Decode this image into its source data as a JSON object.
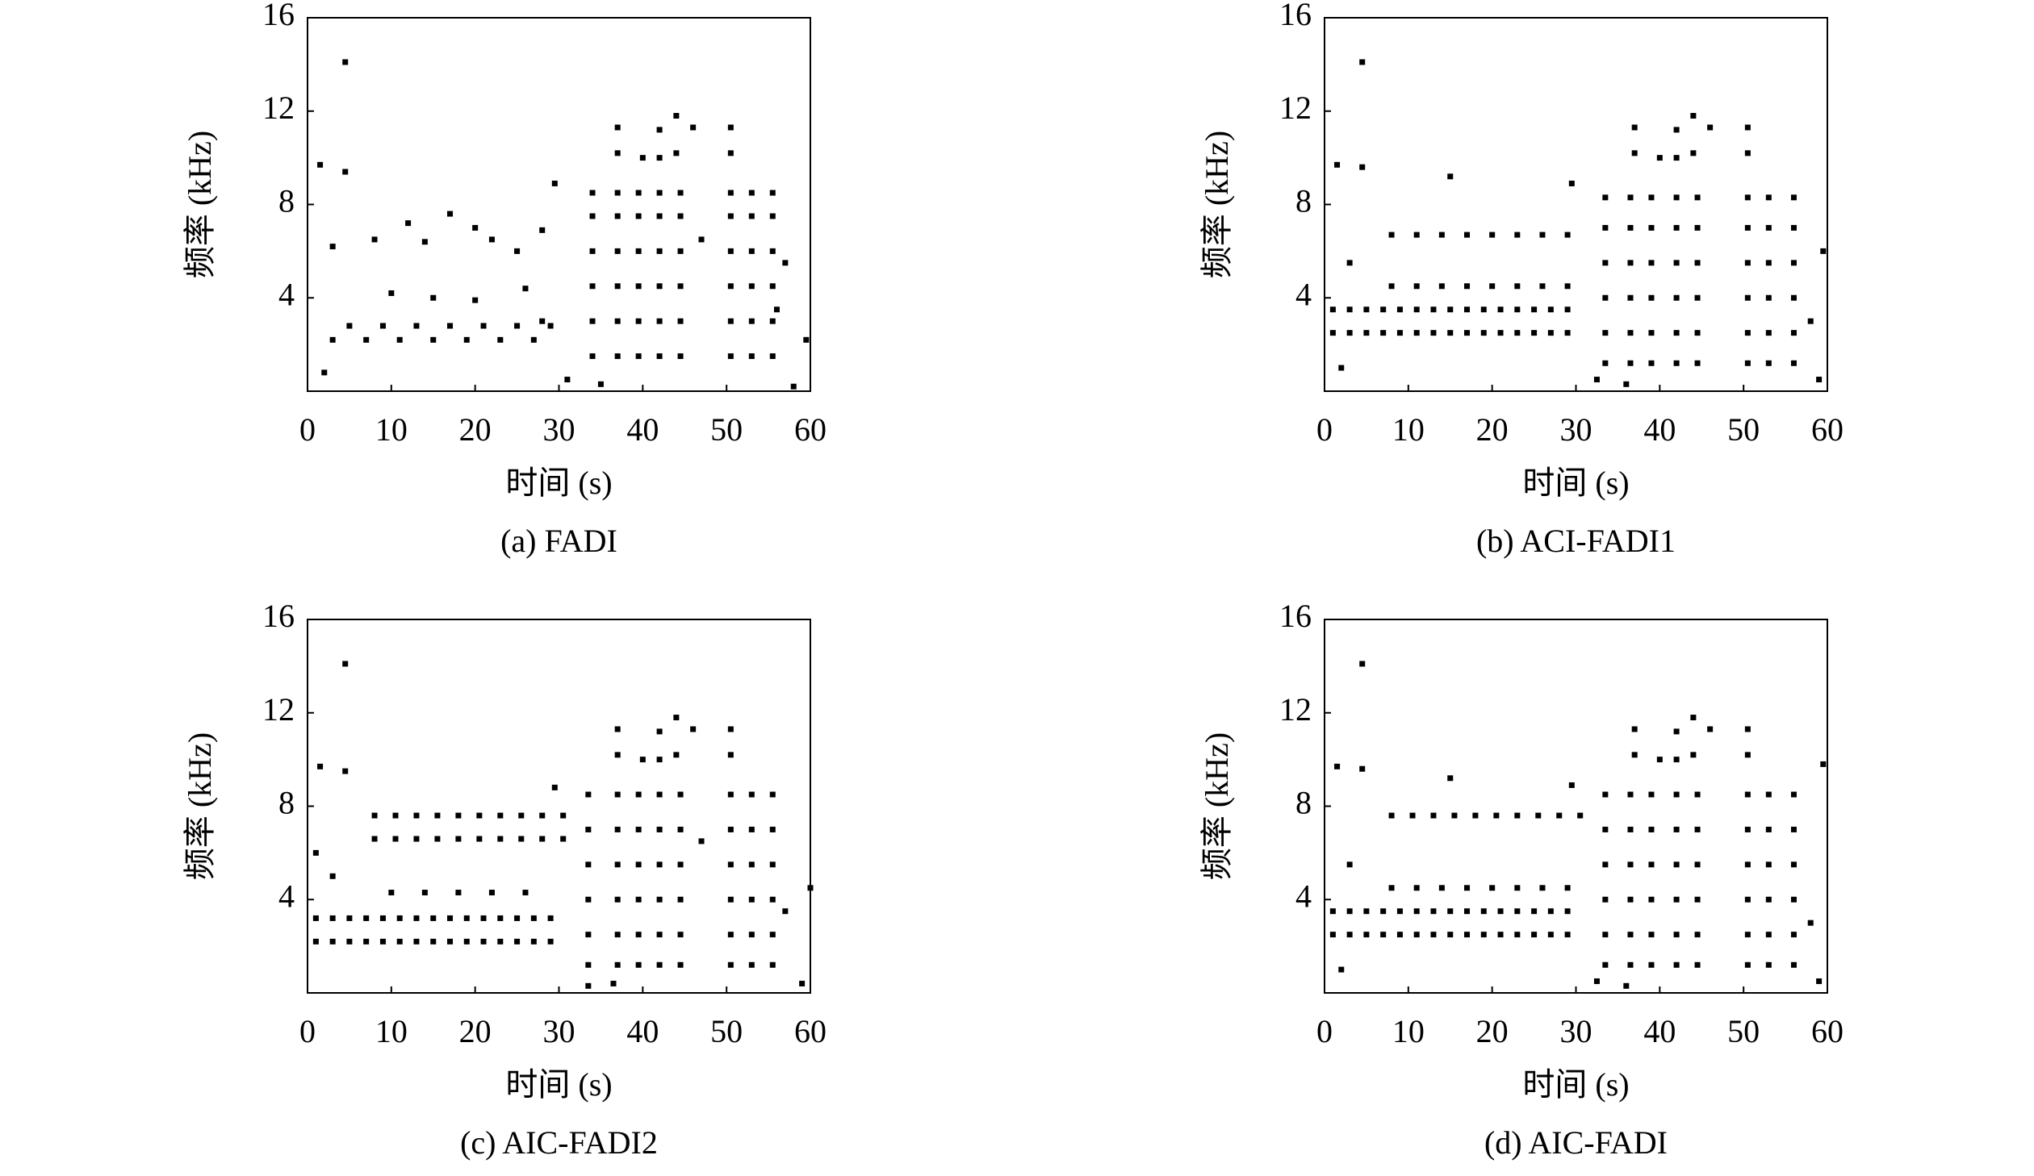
{
  "chart_data": [
    {
      "type": "scatter",
      "x_label": "时间 (s)",
      "y_label": "频率 (kHz)",
      "caption": "(a) FADI",
      "color": "#000000",
      "xlim": [
        0,
        60
      ],
      "ylim": [
        0,
        16
      ],
      "xticks": [
        0,
        10,
        20,
        30,
        40,
        50,
        60
      ],
      "yticks": [
        4,
        8,
        12,
        16
      ],
      "x": [
        34,
        34,
        34,
        34,
        34,
        34,
        37,
        37,
        37,
        37,
        37,
        37,
        39.5,
        39.5,
        39.5,
        39.5,
        39.5,
        39.5,
        42,
        42,
        42,
        42,
        42,
        42,
        44.5,
        44.5,
        44.5,
        44.5,
        44.5,
        44.5,
        50.5,
        50.5,
        50.5,
        50.5,
        50.5,
        50.5,
        53,
        53,
        53,
        53,
        53,
        53,
        55.5,
        55.5,
        55.5,
        55.5,
        55.5,
        55.5,
        37,
        37,
        40,
        42,
        42,
        44,
        44,
        46,
        50.5,
        50.5,
        3,
        5,
        7,
        9,
        11,
        13,
        15,
        17,
        19,
        21,
        23,
        25,
        27,
        29,
        4.5,
        1.5,
        4.5,
        3,
        8,
        12,
        14,
        17,
        20,
        22,
        25,
        28,
        29.5,
        10,
        15,
        20,
        26,
        28,
        2,
        31,
        58,
        56,
        59.5,
        57,
        47,
        35
      ],
      "y": [
        1.5,
        3,
        4.5,
        6,
        7.5,
        8.5,
        1.5,
        3,
        4.5,
        6,
        7.5,
        8.5,
        1.5,
        3,
        4.5,
        6,
        7.5,
        8.5,
        1.5,
        3,
        4.5,
        6,
        7.5,
        8.5,
        1.5,
        3,
        4.5,
        6,
        7.5,
        8.5,
        1.5,
        3,
        4.5,
        6,
        7.5,
        8.5,
        1.5,
        3,
        4.5,
        6,
        7.5,
        8.5,
        1.5,
        3,
        4.5,
        6,
        7.5,
        8.5,
        11.3,
        10.2,
        10,
        11.2,
        10,
        11.8,
        10.2,
        11.3,
        11.3,
        10.2,
        2.2,
        2.8,
        2.2,
        2.8,
        2.2,
        2.8,
        2.2,
        2.8,
        2.2,
        2.8,
        2.2,
        2.8,
        2.2,
        2.8,
        14.1,
        9.7,
        9.4,
        6.2,
        6.5,
        7.2,
        6.4,
        7.6,
        7.0,
        6.5,
        6.0,
        6.9,
        8.9,
        4.2,
        4.0,
        3.9,
        4.4,
        3.0,
        0.8,
        0.5,
        0.2,
        3.5,
        2.2,
        5.5,
        6.5,
        0.3
      ]
    },
    {
      "type": "scatter",
      "x_label": "时间 (s)",
      "y_label": "频率 (kHz)",
      "caption": "(b) ACI-FADI1",
      "color": "#000000",
      "xlim": [
        0,
        60
      ],
      "ylim": [
        0,
        16
      ],
      "xticks": [
        0,
        10,
        20,
        30,
        40,
        50,
        60
      ],
      "yticks": [
        4,
        8,
        12,
        16
      ],
      "x": [
        33.5,
        33.5,
        33.5,
        33.5,
        33.5,
        33.5,
        36.5,
        36.5,
        36.5,
        36.5,
        36.5,
        36.5,
        39,
        39,
        39,
        39,
        39,
        39,
        42,
        42,
        42,
        42,
        42,
        42,
        44.5,
        44.5,
        44.5,
        44.5,
        44.5,
        44.5,
        50.5,
        50.5,
        50.5,
        50.5,
        50.5,
        50.5,
        53,
        53,
        53,
        53,
        53,
        53,
        56,
        56,
        56,
        56,
        56,
        56,
        37,
        37,
        40,
        42,
        42,
        44,
        44,
        46,
        50.5,
        50.5,
        1,
        3,
        5,
        7,
        9,
        11,
        13,
        15,
        17,
        19,
        21,
        23,
        25,
        27,
        29,
        1,
        3,
        5,
        7,
        9,
        11,
        13,
        15,
        17,
        19,
        21,
        23,
        25,
        27,
        29,
        8,
        11,
        14,
        17,
        20,
        23,
        26,
        29,
        8,
        11,
        14,
        17,
        20,
        23,
        26,
        29,
        4.5,
        1.5,
        4.5,
        15,
        29.5,
        3,
        2,
        59,
        59.5,
        58,
        32.5,
        36
      ],
      "y": [
        1.2,
        2.5,
        4,
        5.5,
        7,
        8.3,
        1.2,
        2.5,
        4,
        5.5,
        7,
        8.3,
        1.2,
        2.5,
        4,
        5.5,
        7,
        8.3,
        1.2,
        2.5,
        4,
        5.5,
        7,
        8.3,
        1.2,
        2.5,
        4,
        5.5,
        7,
        8.3,
        1.2,
        2.5,
        4,
        5.5,
        7,
        8.3,
        1.2,
        2.5,
        4,
        5.5,
        7,
        8.3,
        1.2,
        2.5,
        4,
        5.5,
        7,
        8.3,
        11.3,
        10.2,
        10,
        11.2,
        10,
        11.8,
        10.2,
        11.3,
        11.3,
        10.2,
        2.5,
        2.5,
        2.5,
        2.5,
        2.5,
        2.5,
        2.5,
        2.5,
        2.5,
        2.5,
        2.5,
        2.5,
        2.5,
        2.5,
        2.5,
        3.5,
        3.5,
        3.5,
        3.5,
        3.5,
        3.5,
        3.5,
        3.5,
        3.5,
        3.5,
        3.5,
        3.5,
        3.5,
        3.5,
        3.5,
        6.7,
        6.7,
        6.7,
        6.7,
        6.7,
        6.7,
        6.7,
        6.7,
        4.5,
        4.5,
        4.5,
        4.5,
        4.5,
        4.5,
        4.5,
        4.5,
        14.1,
        9.7,
        9.6,
        9.2,
        8.9,
        5.5,
        1.0,
        0.5,
        6,
        3,
        0.5,
        0.3
      ]
    },
    {
      "type": "scatter",
      "x_label": "时间 (s)",
      "y_label": "频率 (kHz)",
      "caption": "(c) AIC-FADI2",
      "color": "#000000",
      "xlim": [
        0,
        60
      ],
      "ylim": [
        0,
        16
      ],
      "xticks": [
        0,
        10,
        20,
        30,
        40,
        50,
        60
      ],
      "yticks": [
        4,
        8,
        12,
        16
      ],
      "x": [
        33.5,
        33.5,
        33.5,
        33.5,
        33.5,
        33.5,
        37,
        37,
        37,
        37,
        37,
        37,
        39.5,
        39.5,
        39.5,
        39.5,
        39.5,
        39.5,
        42,
        42,
        42,
        42,
        42,
        42,
        44.5,
        44.5,
        44.5,
        44.5,
        44.5,
        44.5,
        50.5,
        50.5,
        50.5,
        50.5,
        50.5,
        50.5,
        53,
        53,
        53,
        53,
        53,
        53,
        55.5,
        55.5,
        55.5,
        55.5,
        55.5,
        55.5,
        37,
        37,
        40,
        42,
        42,
        44,
        44,
        46,
        50.5,
        50.5,
        1,
        3,
        5,
        7,
        9,
        11,
        13,
        15,
        17,
        19,
        21,
        23,
        25,
        27,
        29,
        1,
        3,
        5,
        7,
        9,
        11,
        13,
        15,
        17,
        19,
        21,
        23,
        25,
        27,
        29,
        8,
        10.5,
        13,
        15.5,
        18,
        20.5,
        23,
        25.5,
        28,
        30.5,
        8,
        10.5,
        13,
        15.5,
        18,
        20.5,
        23,
        25.5,
        28,
        30.5,
        10,
        14,
        18,
        22,
        26,
        4.5,
        1.5,
        4.5,
        1,
        3,
        29.5,
        33.5,
        36.5,
        59,
        60,
        47,
        57
      ],
      "y": [
        1.2,
        2.5,
        4,
        5.5,
        7,
        8.5,
        1.2,
        2.5,
        4,
        5.5,
        7,
        8.5,
        1.2,
        2.5,
        4,
        5.5,
        7,
        8.5,
        1.2,
        2.5,
        4,
        5.5,
        7,
        8.5,
        1.2,
        2.5,
        4,
        5.5,
        7,
        8.5,
        1.2,
        2.5,
        4,
        5.5,
        7,
        8.5,
        1.2,
        2.5,
        4,
        5.5,
        7,
        8.5,
        1.2,
        2.5,
        4,
        5.5,
        7,
        8.5,
        11.3,
        10.2,
        10,
        11.2,
        10,
        11.8,
        10.2,
        11.3,
        11.3,
        10.2,
        2.2,
        2.2,
        2.2,
        2.2,
        2.2,
        2.2,
        2.2,
        2.2,
        2.2,
        2.2,
        2.2,
        2.2,
        2.2,
        2.2,
        2.2,
        3.2,
        3.2,
        3.2,
        3.2,
        3.2,
        3.2,
        3.2,
        3.2,
        3.2,
        3.2,
        3.2,
        3.2,
        3.2,
        3.2,
        3.2,
        7.6,
        7.6,
        7.6,
        7.6,
        7.6,
        7.6,
        7.6,
        7.6,
        7.6,
        7.6,
        6.6,
        6.6,
        6.6,
        6.6,
        6.6,
        6.6,
        6.6,
        6.6,
        6.6,
        6.6,
        4.3,
        4.3,
        4.3,
        4.3,
        4.3,
        14.1,
        9.7,
        9.5,
        6,
        5,
        8.8,
        0.3,
        0.4,
        0.4,
        4.5,
        6.5,
        3.5
      ]
    },
    {
      "type": "scatter",
      "x_label": "时间 (s)",
      "y_label": "频率 (kHz)",
      "caption": "(d) AIC-FADI",
      "color": "#000000",
      "xlim": [
        0,
        60
      ],
      "ylim": [
        0,
        16
      ],
      "xticks": [
        0,
        10,
        20,
        30,
        40,
        50,
        60
      ],
      "yticks": [
        4,
        8,
        12,
        16
      ],
      "x": [
        33.5,
        33.5,
        33.5,
        33.5,
        33.5,
        33.5,
        36.5,
        36.5,
        36.5,
        36.5,
        36.5,
        36.5,
        39,
        39,
        39,
        39,
        39,
        39,
        42,
        42,
        42,
        42,
        42,
        42,
        44.5,
        44.5,
        44.5,
        44.5,
        44.5,
        44.5,
        50.5,
        50.5,
        50.5,
        50.5,
        50.5,
        50.5,
        53,
        53,
        53,
        53,
        53,
        53,
        56,
        56,
        56,
        56,
        56,
        56,
        37,
        37,
        40,
        42,
        42,
        44,
        44,
        46,
        50.5,
        50.5,
        1,
        3,
        5,
        7,
        9,
        11,
        13,
        15,
        17,
        19,
        21,
        23,
        25,
        27,
        29,
        1,
        3,
        5,
        7,
        9,
        11,
        13,
        15,
        17,
        19,
        21,
        23,
        25,
        27,
        29,
        8,
        10.5,
        13,
        15.5,
        18,
        20.5,
        23,
        25.5,
        28,
        30.5,
        8,
        11,
        14,
        17,
        20,
        23,
        26,
        29,
        4.5,
        1.5,
        4.5,
        15,
        29.5,
        3,
        2,
        59,
        59.5,
        58,
        32.5,
        36
      ],
      "y": [
        1.2,
        2.5,
        4,
        5.5,
        7,
        8.5,
        1.2,
        2.5,
        4,
        5.5,
        7,
        8.5,
        1.2,
        2.5,
        4,
        5.5,
        7,
        8.5,
        1.2,
        2.5,
        4,
        5.5,
        7,
        8.5,
        1.2,
        2.5,
        4,
        5.5,
        7,
        8.5,
        1.2,
        2.5,
        4,
        5.5,
        7,
        8.5,
        1.2,
        2.5,
        4,
        5.5,
        7,
        8.5,
        1.2,
        2.5,
        4,
        5.5,
        7,
        8.5,
        11.3,
        10.2,
        10,
        11.2,
        10,
        11.8,
        10.2,
        11.3,
        11.3,
        10.2,
        2.5,
        2.5,
        2.5,
        2.5,
        2.5,
        2.5,
        2.5,
        2.5,
        2.5,
        2.5,
        2.5,
        2.5,
        2.5,
        2.5,
        2.5,
        3.5,
        3.5,
        3.5,
        3.5,
        3.5,
        3.5,
        3.5,
        3.5,
        3.5,
        3.5,
        3.5,
        3.5,
        3.5,
        3.5,
        3.5,
        7.6,
        7.6,
        7.6,
        7.6,
        7.6,
        7.6,
        7.6,
        7.6,
        7.6,
        7.6,
        4.5,
        4.5,
        4.5,
        4.5,
        4.5,
        4.5,
        4.5,
        4.5,
        14.1,
        9.7,
        9.6,
        9.2,
        8.9,
        5.5,
        1.0,
        0.5,
        9.8,
        3,
        0.5,
        0.3
      ]
    }
  ]
}
